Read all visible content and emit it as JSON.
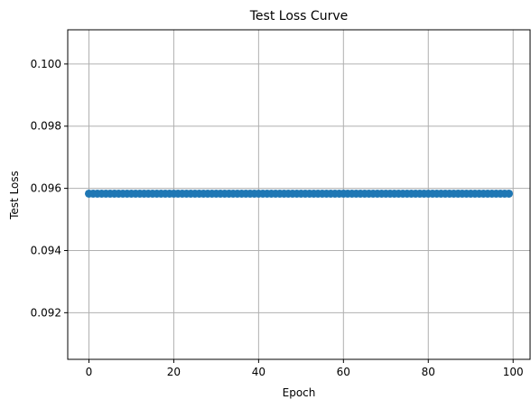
{
  "chart_data": {
    "type": "line",
    "title": "Test Loss Curve",
    "xlabel": "Epoch",
    "ylabel": "Test Loss",
    "xlim": [
      -5,
      104
    ],
    "ylim": [
      0.0905,
      0.1011
    ],
    "xticks": [
      0,
      20,
      40,
      60,
      80,
      100
    ],
    "yticks": [
      0.092,
      0.094,
      0.096,
      0.098,
      0.1
    ],
    "ytick_labels": [
      "0.092",
      "0.094",
      "0.096",
      "0.098",
      "0.100"
    ],
    "grid": true,
    "series": [
      {
        "color": "#1f77b4",
        "marker": "circle",
        "x_start": 0,
        "x_end": 99,
        "constant_value": 0.09583
      }
    ]
  }
}
